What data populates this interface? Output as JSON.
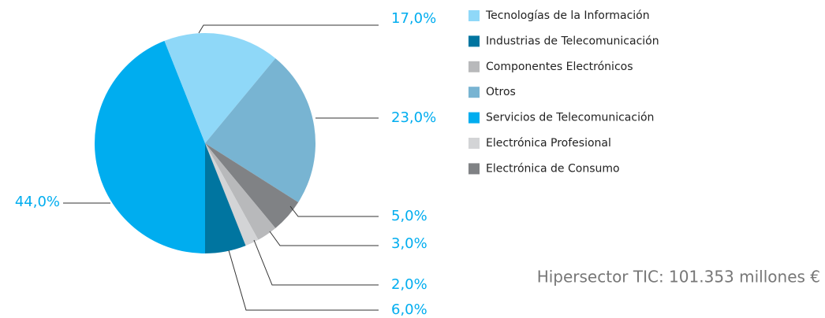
{
  "chart_data": {
    "type": "pie",
    "categories": [
      "Tecnologías de la Información",
      "Industrias de Telecomunicación",
      "Componentes Electrónicos",
      "Otros",
      "Servicios de Telecomunicación",
      "Electrónica Profesional",
      "Electrónica de Consumo"
    ],
    "values": [
      17,
      6,
      3,
      23,
      44,
      2,
      5
    ],
    "value_labels": [
      "17,0%",
      "6,0%",
      "3,0%",
      "23,0%",
      "44,0%",
      "2,0%",
      "5,0%"
    ],
    "colors": [
      "#8fd8f8",
      "#0075a0",
      "#b8b9bb",
      "#78b4d2",
      "#00adef",
      "#d3d4d6",
      "#808285"
    ],
    "annotation": "Hipersector TIC: 101.353 millones €"
  }
}
